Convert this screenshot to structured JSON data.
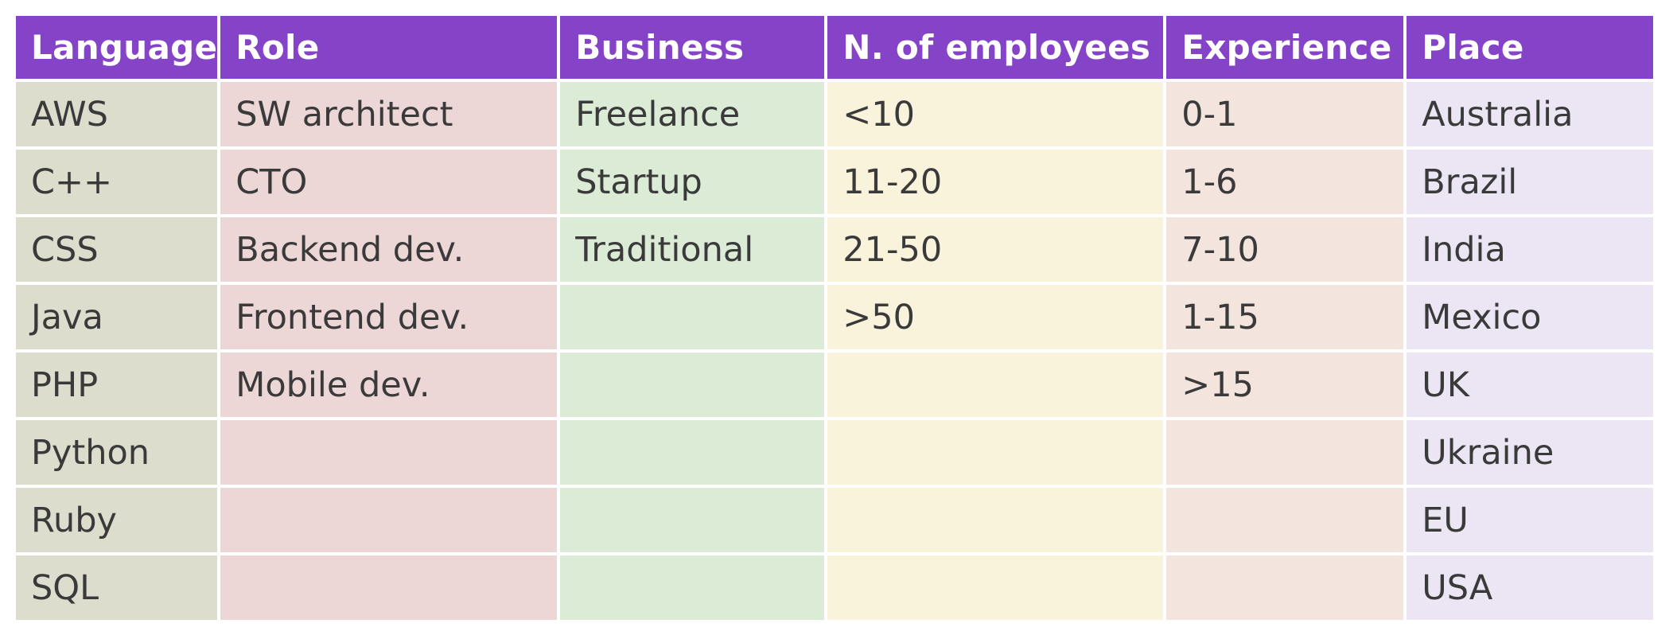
{
  "table": {
    "columns": [
      {
        "header": "Language",
        "bg": "#dcddcd"
      },
      {
        "header": "Role",
        "bg": "#ecd6d6"
      },
      {
        "header": "Business",
        "bg": "#dcebd6"
      },
      {
        "header": "N. of employees",
        "bg": "#faf3dc"
      },
      {
        "header": "Experience",
        "bg": "#f3e5de"
      },
      {
        "header": "Place",
        "bg": "#ece5f3"
      }
    ],
    "header_bg": "#8544c8",
    "rows": [
      [
        "AWS",
        "SW architect",
        "Freelance",
        "<10",
        "0-1",
        "Australia"
      ],
      [
        "C++",
        "CTO",
        "Startup",
        "11-20",
        "1-6",
        "Brazil"
      ],
      [
        "CSS",
        "Backend dev.",
        "Traditional",
        "21-50",
        "7-10",
        "India"
      ],
      [
        "Java",
        "Frontend dev.",
        "",
        ">50",
        "1-15",
        "Mexico"
      ],
      [
        "PHP",
        "Mobile dev.",
        "",
        "",
        ">15",
        "UK"
      ],
      [
        "Python",
        "",
        "",
        "",
        "",
        "Ukraine"
      ],
      [
        "Ruby",
        "",
        "",
        "",
        "",
        "EU"
      ],
      [
        "SQL",
        "",
        "",
        "",
        "",
        "USA"
      ]
    ]
  }
}
